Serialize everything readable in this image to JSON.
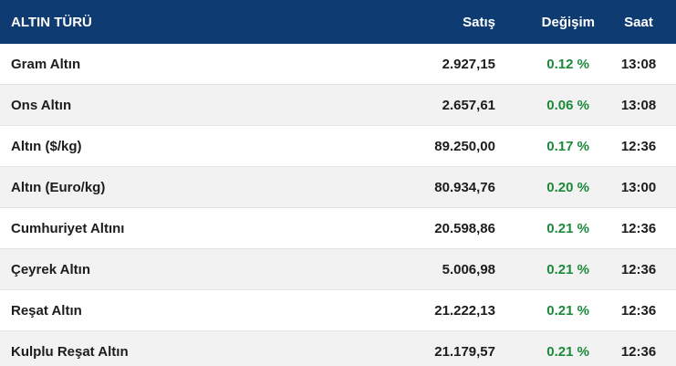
{
  "header": {
    "name": "ALTIN TÜRÜ",
    "satis": "Satış",
    "degisim": "Değişim",
    "saat": "Saat"
  },
  "rows": [
    {
      "name": "Gram Altın",
      "satis": "2.927,15",
      "degisim": "0.12 %",
      "saat": "13:08"
    },
    {
      "name": "Ons Altın",
      "satis": "2.657,61",
      "degisim": "0.06 %",
      "saat": "13:08"
    },
    {
      "name": "Altın ($/kg)",
      "satis": "89.250,00",
      "degisim": "0.17 %",
      "saat": "12:36"
    },
    {
      "name": "Altın (Euro/kg)",
      "satis": "80.934,76",
      "degisim": "0.20 %",
      "saat": "13:00"
    },
    {
      "name": "Cumhuriyet Altını",
      "satis": "20.598,86",
      "degisim": "0.21 %",
      "saat": "12:36"
    },
    {
      "name": "Çeyrek Altın",
      "satis": "5.006,98",
      "degisim": "0.21 %",
      "saat": "12:36"
    },
    {
      "name": "Reşat Altın",
      "satis": "21.222,13",
      "degisim": "0.21 %",
      "saat": "12:36"
    },
    {
      "name": "Kulplu Reşat Altın",
      "satis": "21.179,57",
      "degisim": "0.21 %",
      "saat": "12:36"
    }
  ],
  "colors": {
    "header_bg": "#0f3b73",
    "positive_change": "#1a8a3a",
    "alt_row_bg": "#f2f2f2"
  }
}
